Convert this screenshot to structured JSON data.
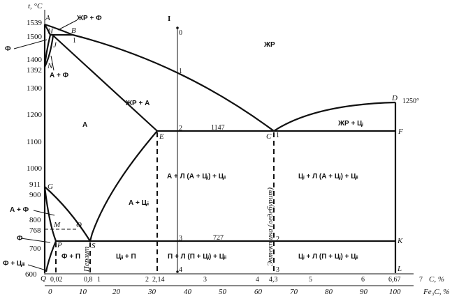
{
  "axes": {
    "y_label": "t, °C",
    "y_ticks": [
      "1539",
      "1500",
      "1400",
      "1392",
      "1300",
      "1200",
      "1100",
      "1000",
      "911",
      "900",
      "800",
      "768",
      "700",
      "600"
    ],
    "x_label": "C, %",
    "x_ticks": [
      "0,02",
      "0,8",
      "1",
      "2",
      "2,14",
      "3",
      "4",
      "4,3",
      "5",
      "6",
      "6,67",
      "7"
    ],
    "x2_label": "Fe₃C, %",
    "x2_ticks": [
      "0",
      "10",
      "20",
      "30",
      "40",
      "50",
      "60",
      "70",
      "80",
      "90",
      "100"
    ]
  },
  "points": {
    "A": "A",
    "H": "H",
    "B": "B",
    "J": "J",
    "N": "N",
    "D": "D",
    "E": "E",
    "C": "C",
    "F": "F",
    "G": "G",
    "M": "M",
    "O": "O",
    "P": "P",
    "S": "S",
    "K": "K",
    "Q": "Q",
    "L": "L"
  },
  "annotations": {
    "d_temp": "1250°",
    "eutectic_temp": "1147",
    "eutectoid_temp": "727",
    "b_mark": "1"
  },
  "alloy_line": {
    "label": "I",
    "marks": [
      "0",
      "1",
      "2",
      "3",
      "4"
    ]
  },
  "eutectic_marks": [
    "1",
    "2",
    "3"
  ],
  "phases": {
    "liquid": "ЖР",
    "liquid_ferrite": "ЖР + Ф",
    "ferrite": "Ф",
    "austenite_ferrite": "А + Ф",
    "liquid_austenite": "ЖР + А",
    "austenite": "А",
    "liquid_cementite": "ЖР + Цᵢ",
    "hypo_cast_high": "А + Л (А + Цᵢ) + Цᵢᵢ",
    "hyper_cast_high": "Цᵢ + Л (А + Цᵢ) + Цᵢᵢ",
    "austenite_cem2": "А + Цᵢᵢ",
    "austenite_ferrite_low": "А + Ф",
    "ferrite_low": "Ф",
    "ferrite_cem3": "Ф + Цᵢᵢᵢ",
    "ferrite_pearlite": "Ф + П",
    "cem2_pearlite": "Цᵢᵢ + П",
    "hypo_cast_low": "П + Л (П + Цᵢ) + Цᵢᵢ",
    "hyper_cast_low": "Цᵢ + Л (П + Цᵢ) + Цᵢᵢ",
    "pearlite_vertical": "Перлит",
    "eutectic_vertical": "Эвтектика (ледебурит)"
  }
}
